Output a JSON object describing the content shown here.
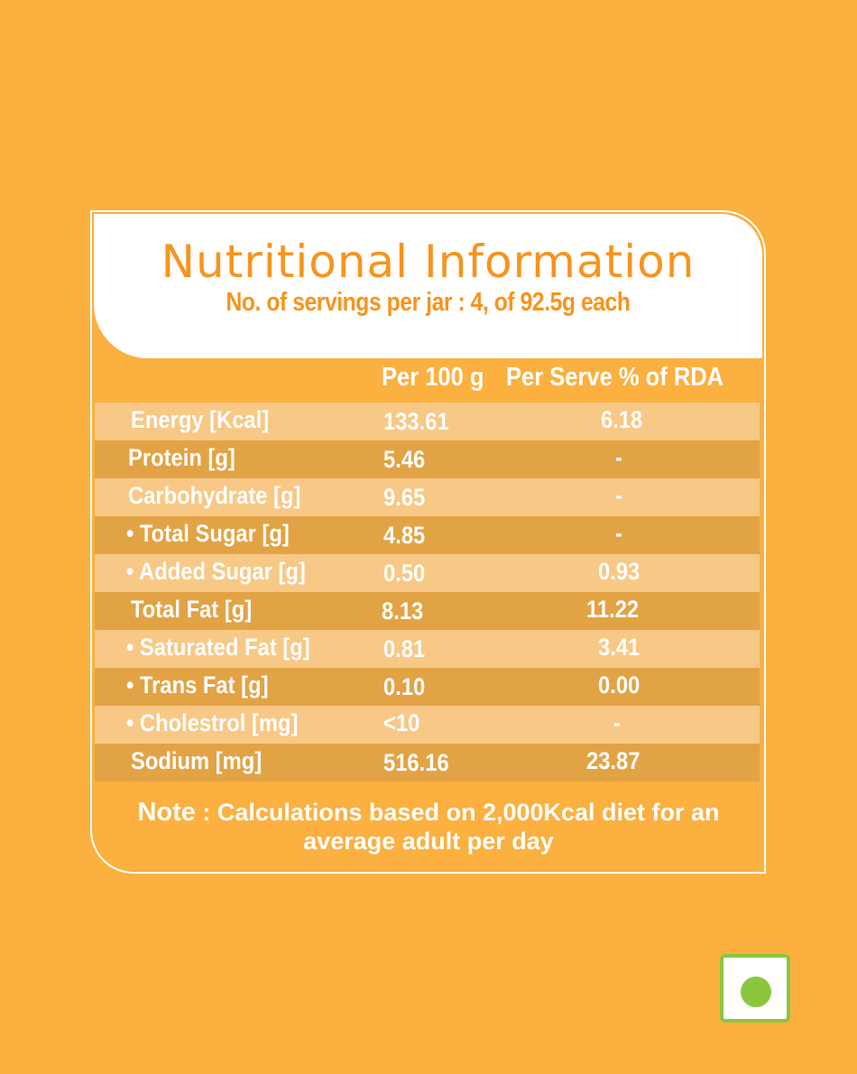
{
  "header": {
    "title": "Nutritional Information",
    "subtitle": "No. of servings per jar : 4, of 92.5g each"
  },
  "columns": {
    "per100": "Per 100 g",
    "perServe": "Per  Serve  %  of RDA"
  },
  "rows": [
    {
      "name": "Energy [Kcal]",
      "per100": "133.61",
      "rda": "6.18"
    },
    {
      "name": "Protein [g]",
      "per100": "5.46",
      "rda": "-"
    },
    {
      "name": "Carbohydrate [g]",
      "per100": "9.65",
      "rda": "-"
    },
    {
      "name": "• Total Sugar [g]",
      "per100": "4.85",
      "rda": "-"
    },
    {
      "name": "• Added Sugar [g]",
      "per100": "0.50",
      "rda": "0.93"
    },
    {
      "name": "Total Fat [g]",
      "per100": "8.13",
      "rda": "11.22"
    },
    {
      "name": "• Saturated Fat [g]",
      "per100": "0.81",
      "rda": "3.41"
    },
    {
      "name": "• Trans Fat [g]",
      "per100": "0.10",
      "rda": "0.00"
    },
    {
      "name": "• Cholestrol [mg]",
      "per100": "<10",
      "rda": "-"
    },
    {
      "name": "Sodium [mg]",
      "per100": "516.16",
      "rda": "23.87"
    }
  ],
  "note": {
    "label": "Note",
    "text_line1": " :  Calculations based on 2,000Kcal diet for an",
    "text_line2": "average adult per day"
  },
  "colors": {
    "background": "#fbb040",
    "title": "#f7941d",
    "row_light": "#f8c886",
    "row_dark": "#e2a345",
    "veg_mark": "#8cc63f"
  },
  "icons": {
    "veg_mark": "vegetarian-mark-icon"
  }
}
